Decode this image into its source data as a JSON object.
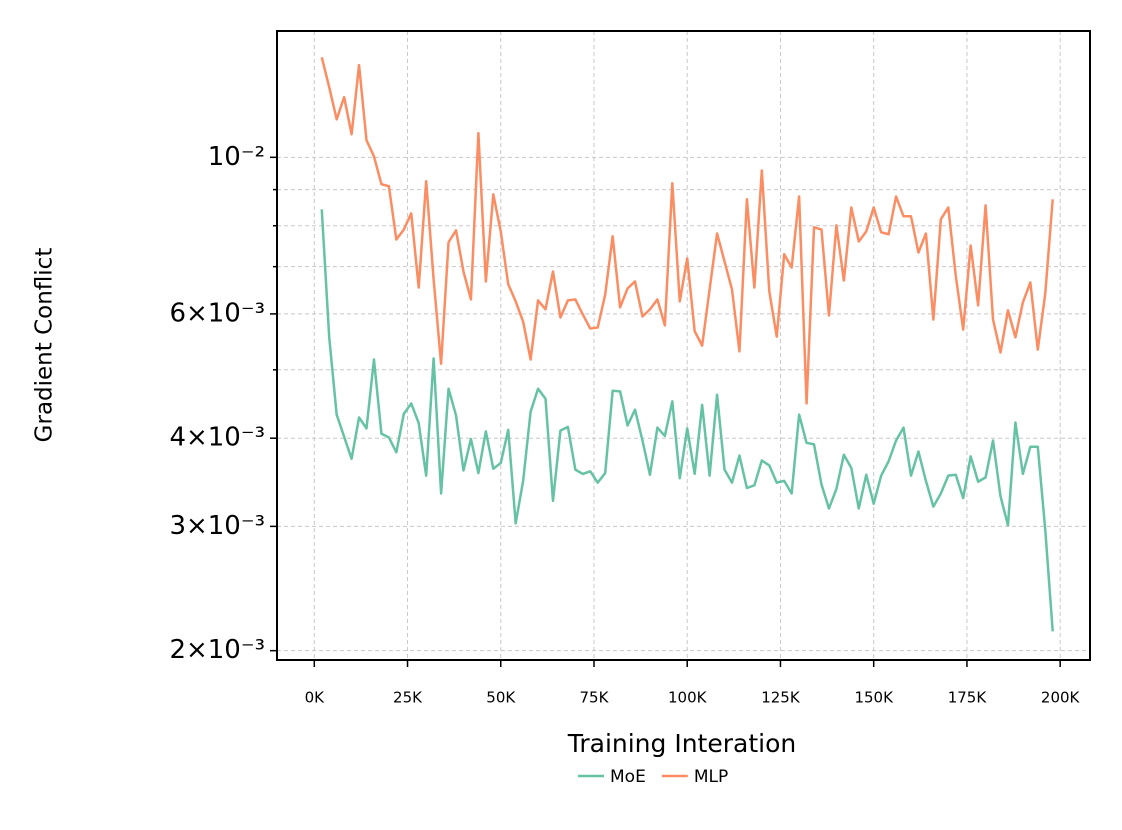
{
  "chart_data": {
    "type": "line",
    "xlabel": "Training Interation",
    "ylabel": "Gradient Conflict",
    "log_y": true,
    "grid": true,
    "legend": "below",
    "xlim": [
      -10000,
      208000
    ],
    "ylim": [
      0.00194,
      0.0151
    ],
    "xticks": [
      {
        "value": 0,
        "label": "0K"
      },
      {
        "value": 25000,
        "label": "25K"
      },
      {
        "value": 50000,
        "label": "50K"
      },
      {
        "value": 75000,
        "label": "75K"
      },
      {
        "value": 100000,
        "label": "100K"
      },
      {
        "value": 125000,
        "label": "125K"
      },
      {
        "value": 150000,
        "label": "150K"
      },
      {
        "value": 175000,
        "label": "175K"
      },
      {
        "value": 200000,
        "label": "200K"
      }
    ],
    "yticks": [
      {
        "value": 0.002,
        "label": "2×10⁻³"
      },
      {
        "value": 0.003,
        "label": "3×10⁻³"
      },
      {
        "value": 0.004,
        "label": "4×10⁻³"
      },
      {
        "value": 0.006,
        "label": "6×10⁻³"
      },
      {
        "value": 0.01,
        "label": "10⁻²"
      }
    ],
    "yminorticks": [
      0.005,
      0.007,
      0.008,
      0.009
    ],
    "x": [
      2000,
      4000,
      6000,
      8000,
      10000,
      12000,
      14000,
      16000,
      18000,
      20000,
      22000,
      24000,
      26000,
      28000,
      30000,
      32000,
      34000,
      36000,
      38000,
      40000,
      42000,
      44000,
      46000,
      48000,
      50000,
      52000,
      54000,
      56000,
      58000,
      60000,
      62000,
      64000,
      66000,
      68000,
      70000,
      72000,
      74000,
      76000,
      78000,
      80000,
      82000,
      84000,
      86000,
      88000,
      90000,
      92000,
      94000,
      96000,
      98000,
      100000,
      102000,
      104000,
      106000,
      108000,
      110000,
      112000,
      114000,
      116000,
      118000,
      120000,
      122000,
      124000,
      126000,
      128000,
      130000,
      132000,
      134000,
      136000,
      138000,
      140000,
      142000,
      144000,
      146000,
      148000,
      150000,
      152000,
      154000,
      156000,
      158000,
      160000,
      162000,
      164000,
      166000,
      168000,
      170000,
      172000,
      174000,
      176000,
      178000,
      180000,
      182000,
      184000,
      186000,
      188000,
      190000,
      192000,
      194000,
      196000,
      198000
    ],
    "series": [
      {
        "name": "MoE",
        "color": "#66c2a5",
        "values": [
          0.00844,
          0.00556,
          0.00432,
          0.00402,
          0.00374,
          0.00428,
          0.00413,
          0.00517,
          0.00406,
          0.00401,
          0.00382,
          0.00433,
          0.00448,
          0.0042,
          0.00354,
          0.00519,
          0.00334,
          0.0047,
          0.00431,
          0.0036,
          0.00399,
          0.00357,
          0.00409,
          0.00362,
          0.00369,
          0.00411,
          0.00303,
          0.00348,
          0.00436,
          0.0047,
          0.00455,
          0.00326,
          0.0041,
          0.00415,
          0.00361,
          0.00356,
          0.00359,
          0.00346,
          0.00357,
          0.00467,
          0.00466,
          0.00417,
          0.00439,
          0.00397,
          0.00355,
          0.00414,
          0.00403,
          0.00451,
          0.00351,
          0.00413,
          0.00356,
          0.00446,
          0.00354,
          0.00461,
          0.00361,
          0.00346,
          0.00378,
          0.0034,
          0.00343,
          0.00372,
          0.00366,
          0.00346,
          0.00348,
          0.00334,
          0.00432,
          0.00394,
          0.00392,
          0.00344,
          0.00318,
          0.00339,
          0.00379,
          0.00363,
          0.00318,
          0.00355,
          0.00323,
          0.00354,
          0.00371,
          0.00397,
          0.00414,
          0.00354,
          0.00383,
          0.00348,
          0.0032,
          0.00334,
          0.00354,
          0.00355,
          0.00329,
          0.00377,
          0.00347,
          0.00352,
          0.00397,
          0.00331,
          0.00301,
          0.00421,
          0.00356,
          0.00389,
          0.00389,
          0.00297,
          0.00213
        ]
      },
      {
        "name": "MLP",
        "color": "#fc8d62",
        "values": [
          0.01386,
          0.01257,
          0.01132,
          0.01217,
          0.01078,
          0.01351,
          0.01057,
          0.01003,
          0.00916,
          0.0091,
          0.00765,
          0.0079,
          0.00833,
          0.00654,
          0.00925,
          0.00671,
          0.0051,
          0.00758,
          0.00788,
          0.00689,
          0.00629,
          0.01082,
          0.00667,
          0.00886,
          0.00785,
          0.00661,
          0.00625,
          0.00585,
          0.00517,
          0.00627,
          0.00609,
          0.00689,
          0.00593,
          0.00627,
          0.00629,
          0.00599,
          0.00572,
          0.00574,
          0.00639,
          0.00773,
          0.00613,
          0.00652,
          0.00667,
          0.00595,
          0.00609,
          0.00629,
          0.00578,
          0.00919,
          0.00625,
          0.00719,
          0.00567,
          0.00541,
          0.0065,
          0.0078,
          0.00712,
          0.0065,
          0.00531,
          0.00872,
          0.00654,
          0.00958,
          0.00646,
          0.00557,
          0.00729,
          0.00698,
          0.0088,
          0.00448,
          0.00796,
          0.0079,
          0.00597,
          0.00801,
          0.00669,
          0.00849,
          0.0076,
          0.00785,
          0.00849,
          0.00783,
          0.00778,
          0.0088,
          0.00825,
          0.00825,
          0.00733,
          0.0078,
          0.00589,
          0.00817,
          0.00849,
          0.0068,
          0.0057,
          0.0075,
          0.00617,
          0.00855,
          0.00589,
          0.00529,
          0.00607,
          0.00556,
          0.00623,
          0.00665,
          0.00534,
          0.00641,
          0.00872
        ]
      }
    ]
  }
}
